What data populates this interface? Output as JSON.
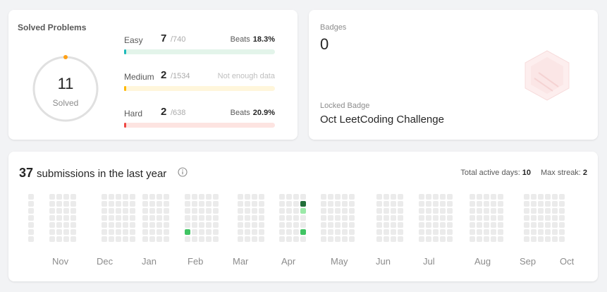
{
  "solved": {
    "title": "Solved Problems",
    "count": "11",
    "label": "Solved",
    "difficulties": [
      {
        "name": "Easy",
        "solved": "7",
        "total": "/740",
        "beats_label": "Beats",
        "beats_value": "18.3%",
        "fraction": 0.0095,
        "color": "#1cbaba",
        "track": "#e3f4ea"
      },
      {
        "name": "Medium",
        "solved": "2",
        "total": "/1534",
        "beats_label": "Not enough data",
        "beats_value": "",
        "fraction": 0.0013,
        "color": "#ffb800",
        "track": "#fff6db"
      },
      {
        "name": "Hard",
        "solved": "2",
        "total": "/638",
        "beats_label": "Beats",
        "beats_value": "20.9%",
        "fraction": 0.0031,
        "color": "#ef4743",
        "track": "#fde4e1"
      }
    ]
  },
  "badges": {
    "title": "Badges",
    "count": "0",
    "locked_label": "Locked Badge",
    "locked_name": "Oct LeetCoding Challenge",
    "icon": "hexagon-badge-icon"
  },
  "submissions": {
    "count": "37",
    "heading": "submissions in the last year",
    "active_days_label": "Total active days:",
    "active_days_value": "10",
    "max_streak_label": "Max streak:",
    "max_streak_value": "2",
    "months": [
      "Nov",
      "Dec",
      "Jan",
      "Feb",
      "Mar",
      "Apr",
      "May",
      "Jun",
      "Jul",
      "Aug",
      "Sep",
      "Oct"
    ],
    "colors": {
      "empty": "#ebebeb",
      "level1": "#9be9a8",
      "level2": "#40c463",
      "level3": "#216e39"
    }
  }
}
